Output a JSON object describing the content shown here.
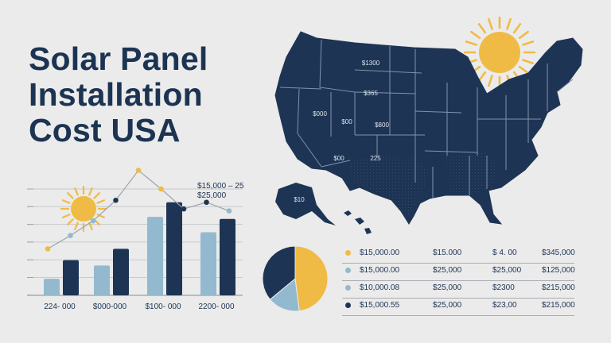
{
  "title_lines": [
    "Solar Panel",
    "Installation",
    "Cost USA"
  ],
  "colors": {
    "navy": "#1e3454",
    "light_blue": "#93b9cf",
    "gold": "#f0bb44",
    "background": "#ebebeb"
  },
  "map": {
    "state_labels": [
      "$1300",
      "$365",
      "$000",
      "$00",
      "$800",
      "$00",
      "225",
      "$10"
    ]
  },
  "chart_data": [
    {
      "type": "bar",
      "categories": [
        "224- 000",
        "$000-000",
        "$100- 000",
        "2200- 000"
      ],
      "series": [
        {
          "color": "#93b9cf",
          "values": [
            25,
            45,
            118,
            95
          ]
        },
        {
          "color": "#1e3454",
          "values": [
            53,
            70,
            140,
            115
          ]
        }
      ],
      "line": {
        "color": "#f0bb44",
        "values": [
          70,
          90,
          112,
          143,
          188,
          160,
          130,
          140,
          127
        ]
      },
      "annotation": [
        "$15,000 – 25",
        "$25,000"
      ],
      "grid": true
    },
    {
      "type": "pie",
      "slices": [
        {
          "color": "#f0bb44",
          "value": 48
        },
        {
          "color": "#93b9cf",
          "value": 16
        },
        {
          "color": "#1e3454",
          "value": 36
        }
      ]
    },
    {
      "type": "table",
      "rows": [
        {
          "color": "#f0bb44",
          "cells": [
            "$15,000.00",
            "$15.000",
            "$ 4. 00",
            "$345,000"
          ]
        },
        {
          "color": "#93b9cf",
          "cells": [
            "$15,000.00",
            "$25,000",
            "$25,000",
            "$125,000"
          ]
        },
        {
          "color": "#93b9cf",
          "cells": [
            "$10,000.08",
            "$25,000",
            "$2300",
            "$215,000"
          ]
        },
        {
          "color": "#1e3454",
          "cells": [
            "$15,000.55",
            "$25,000",
            "$23,00",
            "$215,000"
          ]
        }
      ]
    }
  ]
}
